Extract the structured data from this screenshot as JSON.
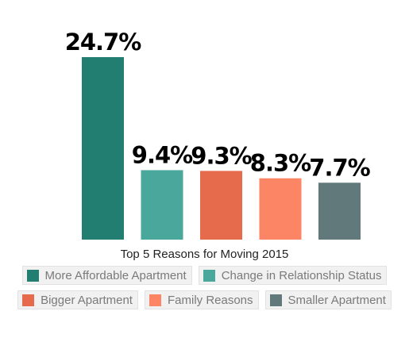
{
  "chart_data": {
    "type": "bar",
    "title": "Top 5 Reasons for Moving 2015",
    "categories": [
      "More Affordable Apartment",
      "Change in Relationship Status",
      "Bigger Apartment",
      "Family Reasons",
      "Smaller Apartment"
    ],
    "values": [
      24.7,
      9.4,
      9.3,
      8.3,
      7.7
    ],
    "value_labels": [
      "24.7%",
      "9.4%",
      "9.3%",
      "8.3%",
      "7.7%"
    ],
    "colors": [
      "#217e70",
      "#4aa79b",
      "#e66a4c",
      "#fc8566",
      "#61797b"
    ],
    "ylim": [
      0,
      24.7
    ],
    "grid": false,
    "legend_position": "bottom"
  }
}
